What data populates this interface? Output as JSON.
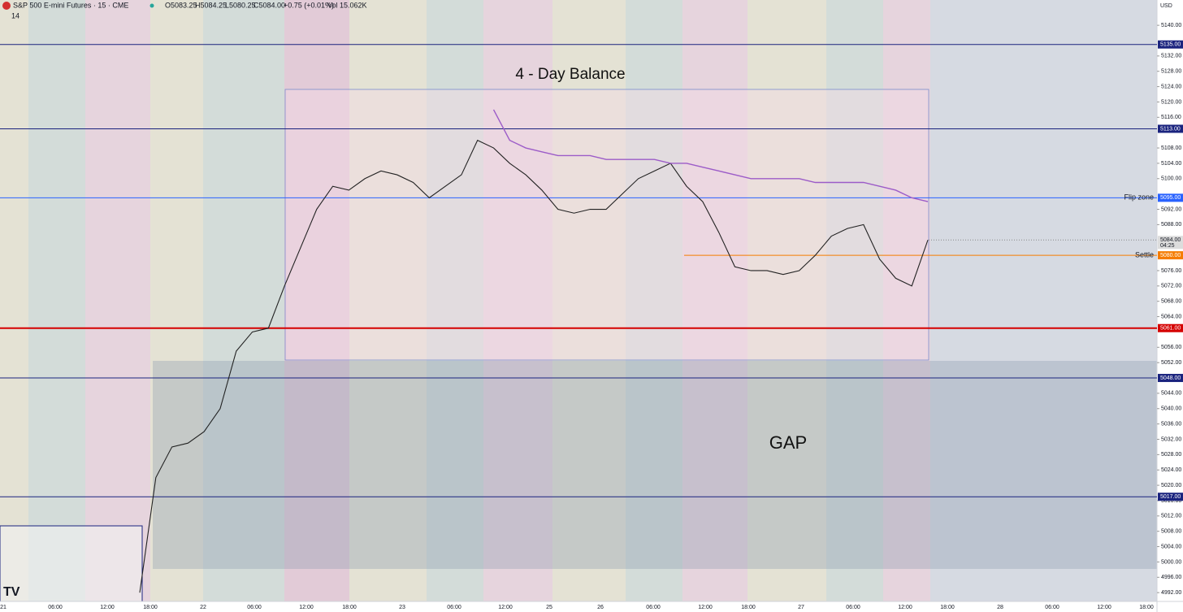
{
  "header": {
    "symbol": "S&P 500 E-mini Futures · 15 · CME",
    "open": "O5083.25",
    "high": "H5084.25",
    "low": "L5080.25",
    "close": "C5084.00",
    "change": "+0.75 (+0.01%)",
    "volume": "Vol 15.062K",
    "indicator": "14",
    "currency": "USD"
  },
  "chart_data": {
    "type": "line",
    "annotations": {
      "balance": "4 - Day Balance",
      "gap": "GAP"
    },
    "ylim": [
      4989.7,
      5146.6
    ],
    "yticks": [
      {
        "value": 4992,
        "label": "4992.00"
      },
      {
        "value": 4996,
        "label": "4996.00"
      },
      {
        "value": 5000,
        "label": "5000.00"
      },
      {
        "value": 5004,
        "label": "5004.00"
      },
      {
        "value": 5008,
        "label": "5008.00"
      },
      {
        "value": 5012,
        "label": "5012.00"
      },
      {
        "value": 5016,
        "label": "5016.00"
      },
      {
        "value": 5020,
        "label": "5020.00"
      },
      {
        "value": 5024,
        "label": "5024.00"
      },
      {
        "value": 5028,
        "label": "5028.00"
      },
      {
        "value": 5032,
        "label": "5032.00"
      },
      {
        "value": 5036,
        "label": "5036.00"
      },
      {
        "value": 5040,
        "label": "5040.00"
      },
      {
        "value": 5044,
        "label": "5044.00"
      },
      {
        "value": 5052,
        "label": "5052.00"
      },
      {
        "value": 5056,
        "label": "5056.00"
      },
      {
        "value": 5064,
        "label": "5064.00"
      },
      {
        "value": 5068,
        "label": "5068.00"
      },
      {
        "value": 5072,
        "label": "5072.00"
      },
      {
        "value": 5076,
        "label": "5076.00"
      },
      {
        "value": 5088,
        "label": "5088.00"
      },
      {
        "value": 5092,
        "label": "5092.00"
      },
      {
        "value": 5100,
        "label": "5100.00"
      },
      {
        "value": 5104,
        "label": "5104.00"
      },
      {
        "value": 5108,
        "label": "5108.00"
      },
      {
        "value": 5116,
        "label": "5116.00"
      },
      {
        "value": 5120,
        "label": "5120.00"
      },
      {
        "value": 5124,
        "label": "5124.00"
      },
      {
        "value": 5128,
        "label": "5128.00"
      },
      {
        "value": 5132,
        "label": "5132.00"
      },
      {
        "value": 5140,
        "label": "5140.00"
      }
    ],
    "categories": [
      "21",
      "06:00",
      "12:00",
      "18:00",
      "22",
      "06:00",
      "12:00",
      "18:00",
      "23",
      "06:00",
      "12:00",
      "25",
      "26",
      "06:00",
      "12:00",
      "18:00",
      "27",
      "06:00",
      "12:00",
      "18:00",
      "28",
      "06:00",
      "12:00",
      "18:00"
    ],
    "levels": [
      {
        "value": 5135,
        "label": "5135.00",
        "color": "#1a237e"
      },
      {
        "value": 5113,
        "label": "5113.00",
        "color": "#1a237e"
      },
      {
        "value": 5095,
        "label": "5095.00",
        "color": "#2962ff",
        "name": "Flip zone"
      },
      {
        "value": 5080,
        "label": "5080.00",
        "color": "#f57c00",
        "name": "Settle"
      },
      {
        "value": 5061,
        "label": "5061.00",
        "color": "#d50000"
      },
      {
        "value": 5048,
        "label": "5048.00",
        "color": "#1a237e"
      },
      {
        "value": 5017,
        "label": "5017.00",
        "color": "#1a237e"
      }
    ],
    "last": {
      "value": 5084,
      "label": "5084.00",
      "countdown": "04:25"
    },
    "lines": [
      {
        "color": "#222222",
        "values": [
          4992,
          5022,
          5030,
          5031,
          5034,
          5040,
          5055,
          5060,
          5061,
          5072,
          5082,
          5092,
          5098,
          5097,
          5100,
          5102,
          5101,
          5099,
          5095,
          5098,
          5101,
          5110,
          5108,
          5104,
          5101,
          5097,
          5092,
          5091,
          5092,
          5092,
          5096,
          5100,
          5102,
          5104,
          5098,
          5094,
          5086,
          5077,
          5076,
          5076,
          5075,
          5076,
          5080,
          5085,
          5087,
          5088,
          5079,
          5074,
          5072,
          5084
        ]
      },
      {
        "color": "#9c5cc8",
        "values": [
          null,
          null,
          null,
          null,
          null,
          null,
          null,
          null,
          null,
          null,
          null,
          null,
          null,
          null,
          null,
          null,
          null,
          null,
          null,
          null,
          null,
          null,
          5118,
          5110,
          5108,
          5107,
          5106,
          5106,
          5106,
          5105,
          5105,
          5105,
          5105,
          5104,
          5104,
          5103,
          5102,
          5101,
          5100,
          5100,
          5100,
          5100,
          5099,
          5099,
          5099,
          5099,
          5098,
          5097,
          5095,
          5094
        ]
      }
    ]
  }
}
